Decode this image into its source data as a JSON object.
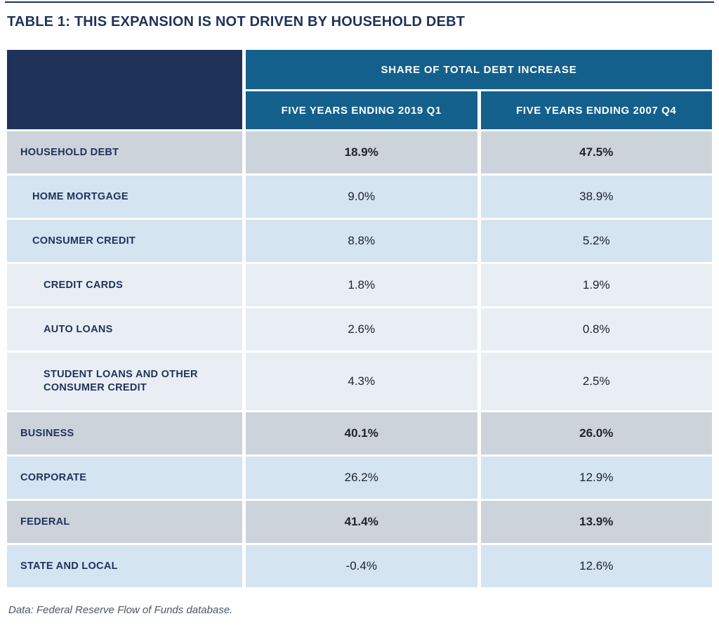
{
  "colors": {
    "navy": "#1F3259",
    "teal": "#14608C",
    "section_bg": "#CDD3DB",
    "sub_bg": "#D4E4F1",
    "subsub_bg": "#E9EEF5",
    "value_text": "#20242C",
    "source_text": "#49576A"
  },
  "chart_data": {
    "type": "table",
    "title": "TABLE 1: THIS EXPANSION IS NOT DRIVEN BY HOUSEHOLD DEBT",
    "column_group": "SHARE OF TOTAL DEBT INCREASE",
    "columns": [
      "FIVE YEARS ENDING 2019 Q1",
      "FIVE YEARS ENDING 2007 Q4"
    ],
    "rows": [
      {
        "label": "HOUSEHOLD DEBT",
        "indent": 0,
        "emphasis": "section",
        "values_pct": [
          18.9,
          47.5
        ],
        "display": [
          "18.9%",
          "47.5%"
        ]
      },
      {
        "label": "HOME MORTGAGE",
        "indent": 1,
        "emphasis": "sub",
        "values_pct": [
          9.0,
          38.9
        ],
        "display": [
          "9.0%",
          "38.9%"
        ]
      },
      {
        "label": "CONSUMER CREDIT",
        "indent": 1,
        "emphasis": "sub",
        "values_pct": [
          8.8,
          5.2
        ],
        "display": [
          "8.8%",
          "5.2%"
        ]
      },
      {
        "label": "CREDIT CARDS",
        "indent": 2,
        "emphasis": "subsub",
        "values_pct": [
          1.8,
          1.9
        ],
        "display": [
          "1.8%",
          "1.9%"
        ]
      },
      {
        "label": "AUTO LOANS",
        "indent": 2,
        "emphasis": "subsub",
        "values_pct": [
          2.6,
          0.8
        ],
        "display": [
          "2.6%",
          "0.8%"
        ]
      },
      {
        "label": "STUDENT LOANS AND OTHER CONSUMER CREDIT",
        "indent": 2,
        "emphasis": "subsub",
        "values_pct": [
          4.3,
          2.5
        ],
        "display": [
          "4.3%",
          "2.5%"
        ]
      },
      {
        "label": "BUSINESS",
        "indent": 0,
        "emphasis": "section",
        "values_pct": [
          40.1,
          26.0
        ],
        "display": [
          "40.1%",
          "26.0%"
        ]
      },
      {
        "label": "CORPORATE",
        "indent": 0,
        "emphasis": "sub",
        "values_pct": [
          26.2,
          12.9
        ],
        "display": [
          "26.2%",
          "12.9%"
        ]
      },
      {
        "label": "FEDERAL",
        "indent": 0,
        "emphasis": "section",
        "values_pct": [
          41.4,
          13.9
        ],
        "display": [
          "41.4%",
          "13.9%"
        ]
      },
      {
        "label": "STATE AND LOCAL",
        "indent": 0,
        "emphasis": "sub",
        "values_pct": [
          -0.4,
          12.6
        ],
        "display": [
          "-0.4%",
          "12.6%"
        ]
      }
    ],
    "source_note": "Data: Federal Reserve Flow of Funds database."
  }
}
